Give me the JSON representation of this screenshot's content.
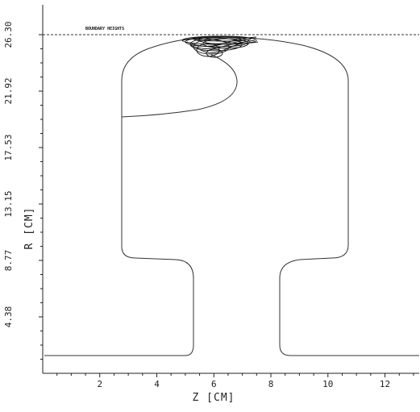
{
  "chart_data": {
    "type": "line",
    "xlabel": "Z [CM]",
    "ylabel": "R [CM]",
    "x_ticks": [
      "2",
      "4",
      "6",
      "8",
      "10",
      "12"
    ],
    "y_ticks": [
      "4.38",
      "8.77",
      "13.15",
      "17.53",
      "21.92",
      "26.30"
    ],
    "xlim": [
      0,
      13.2
    ],
    "ylim": [
      0,
      26.3
    ],
    "boundary_label": "BOUNDARY HEIGHTS",
    "boundary_r": 26.3
  }
}
